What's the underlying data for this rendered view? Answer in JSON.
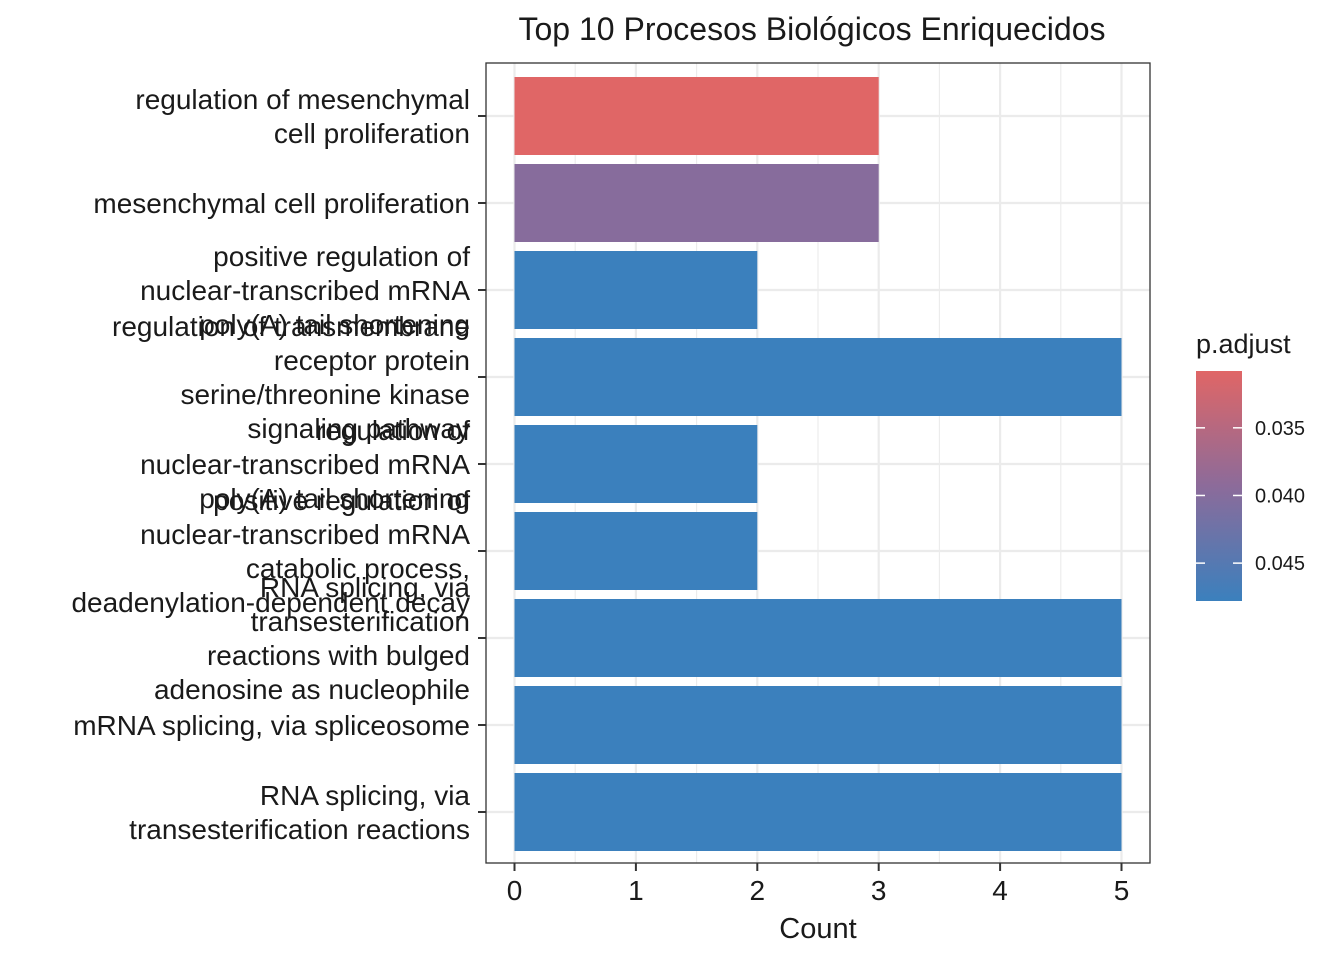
{
  "chart_data": {
    "type": "bar",
    "orientation": "horizontal",
    "title": "Top 10 Procesos Biológicos Enriquecidos",
    "xlabel": "Count",
    "ylabel": "",
    "xlim": [
      0,
      5
    ],
    "x_ticks": [
      "0",
      "1",
      "2",
      "3",
      "4",
      "5"
    ],
    "grid": true,
    "legend_position": "right",
    "categories": [
      [
        "regulation of mesenchymal",
        "cell proliferation"
      ],
      [
        "mesenchymal cell proliferation"
      ],
      [
        "positive regulation of",
        "nuclear-transcribed mRNA",
        "poly(A) tail shortening"
      ],
      [
        "regulation of transmembrane",
        "receptor protein",
        "serine/threonine kinase",
        "signaling pathway"
      ],
      [
        "regulation of",
        "nuclear-transcribed mRNA",
        "poly(A) tail shortening"
      ],
      [
        "positive regulation of",
        "nuclear-transcribed mRNA",
        "catabolic process,",
        "deadenylation-dependent decay"
      ],
      [
        "RNA splicing, via",
        "transesterification",
        "reactions with bulged",
        "adenosine as nucleophile"
      ],
      [
        "mRNA splicing, via spliceosome"
      ],
      [
        "RNA splicing, via",
        "transesterification reactions"
      ]
    ],
    "values": [
      3,
      3,
      2,
      5,
      2,
      2,
      5,
      5,
      5
    ],
    "p_adjust": [
      0.0308,
      0.0398,
      0.0478,
      0.0478,
      0.0478,
      0.0478,
      0.0478,
      0.0478,
      0.0478
    ],
    "colorbar": {
      "title": "p.adjust",
      "range": [
        0.0308,
        0.0478
      ],
      "ticks": [
        0.035,
        0.04,
        0.045
      ],
      "tick_labels": [
        "0.035",
        "0.040",
        "0.045"
      ],
      "low_color": "#e06666",
      "high_color": "#3b80bd"
    },
    "colors": {
      "low": "#e06666",
      "high": "#3b80bd"
    }
  }
}
